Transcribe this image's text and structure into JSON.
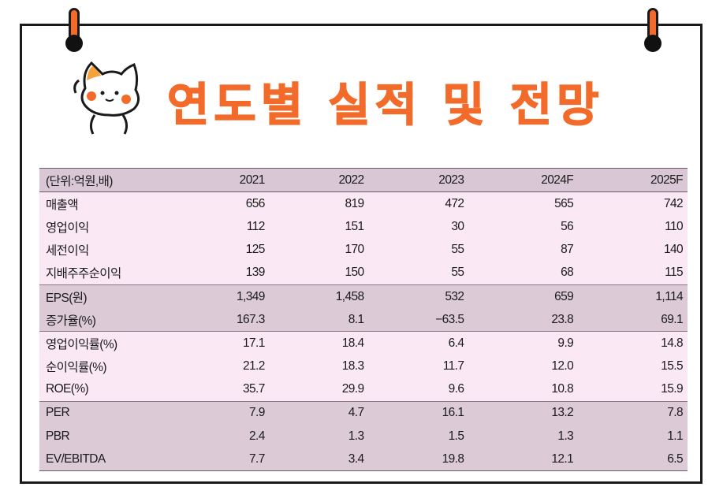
{
  "title": "연도별 실적 및 전망",
  "table": {
    "header": [
      "(단위:억원,배)",
      "2021",
      "2022",
      "2023",
      "2024F",
      "2025F"
    ],
    "rows": [
      {
        "label": "매출액",
        "values": [
          "656",
          "819",
          "472",
          "565",
          "742"
        ]
      },
      {
        "label": "영업이익",
        "values": [
          "112",
          "151",
          "30",
          "56",
          "110"
        ]
      },
      {
        "label": "세전이익",
        "values": [
          "125",
          "170",
          "55",
          "87",
          "140"
        ]
      },
      {
        "label": "지배주주순이익",
        "values": [
          "139",
          "150",
          "55",
          "68",
          "115"
        ]
      },
      {
        "label": "EPS(원)",
        "values": [
          "1,349",
          "1,458",
          "532",
          "659",
          "1,114"
        ]
      },
      {
        "label": "증가율(%)",
        "values": [
          "167.3",
          "8.1",
          "−63.5",
          "23.8",
          "69.1"
        ]
      },
      {
        "label": "영업이익률(%)",
        "values": [
          "17.1",
          "18.4",
          "6.4",
          "9.9",
          "14.8"
        ]
      },
      {
        "label": "순이익률(%)",
        "values": [
          "21.2",
          "18.3",
          "11.7",
          "12.0",
          "15.5"
        ]
      },
      {
        "label": "ROE(%)",
        "values": [
          "35.7",
          "29.9",
          "9.6",
          "10.8",
          "15.9"
        ]
      },
      {
        "label": "PER",
        "values": [
          "7.9",
          "4.7",
          "16.1",
          "13.2",
          "7.8"
        ]
      },
      {
        "label": "PBR",
        "values": [
          "2.4",
          "1.3",
          "1.5",
          "1.3",
          "1.1"
        ]
      },
      {
        "label": "EV/EBITDA",
        "values": [
          "7.7",
          "3.4",
          "19.8",
          "12.1",
          "6.5"
        ]
      }
    ]
  },
  "icons": {
    "mascot": "cat-mascot-icon",
    "pins": "pushpin-icon"
  },
  "colors": {
    "accent": "#f26b2a",
    "row_light": "#fbe8f5",
    "row_dark": "#dccad7",
    "header": "#d9c7d6"
  }
}
